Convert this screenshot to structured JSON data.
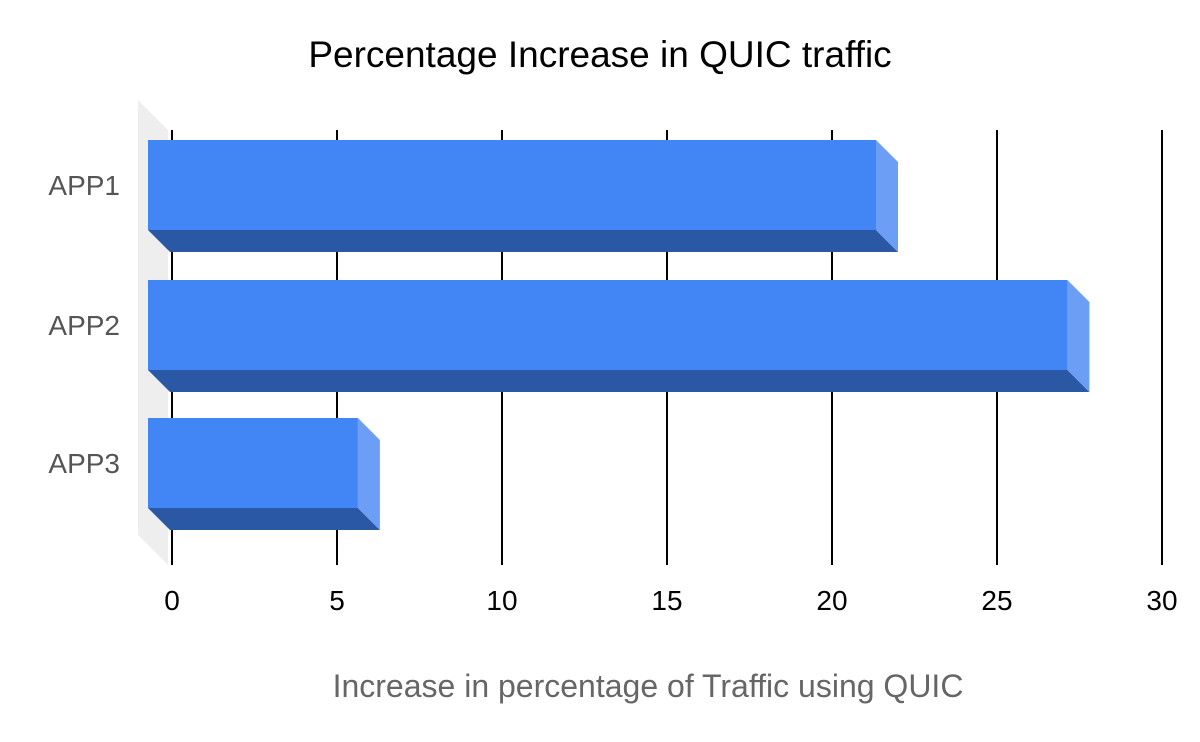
{
  "chart_data": {
    "type": "bar",
    "orientation": "horizontal",
    "title": "Percentage Increase in QUIC traffic",
    "xlabel": "Increase in percentage of Traffic using QUIC",
    "ylabel": "",
    "categories": [
      "APP1",
      "APP2",
      "APP3"
    ],
    "values": [
      22,
      27.8,
      6.3
    ],
    "xlim": [
      0,
      30
    ],
    "x_ticks": [
      "0",
      "5",
      "10",
      "15",
      "20",
      "25",
      "30"
    ],
    "grid": true,
    "legend": "none",
    "style": "3d",
    "colors": {
      "bar_front": "#4285f4",
      "bar_bottom": "#2b58a5",
      "bar_side": "#6c9ef6",
      "floor": "#eeeeee",
      "grid": "#000000"
    }
  }
}
